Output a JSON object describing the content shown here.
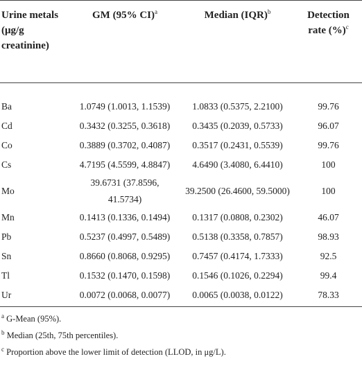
{
  "table": {
    "header": [
      {
        "text": "Urine metals (μg/g creatinine)"
      },
      {
        "text": "GM (95% CI)",
        "note": "a"
      },
      {
        "text": "Median (IQR)",
        "note": "b"
      },
      {
        "text": "Detection rate (%)",
        "note": "c"
      }
    ],
    "rows": [
      [
        "Ba",
        "1.0749 (1.0013, 1.1539)",
        "1.0833 (0.5375, 2.2100)",
        "99.76"
      ],
      [
        "Cd",
        "0.3432 (0.3255, 0.3618)",
        "0.3435 (0.2039, 0.5733)",
        "96.07"
      ],
      [
        "Co",
        "0.3889 (0.3702, 0.4087)",
        "0.3517 (0.2431, 0.5539)",
        "99.76"
      ],
      [
        "Cs",
        "4.7195 (4.5599, 4.8847)",
        "4.6490 (3.4080, 6.4410)",
        "100"
      ],
      [
        "Mo",
        "39.6731 (37.8596, 41.5734)",
        "39.2500 (26.4600, 59.5000)",
        "100"
      ],
      [
        "Mn",
        "0.1413 (0.1336, 0.1494)",
        "0.1317 (0.0808, 0.2302)",
        "46.07"
      ],
      [
        "Pb",
        "0.5237 (0.4997, 0.5489)",
        "0.5138 (0.3358, 0.7857)",
        "98.93"
      ],
      [
        "Sn",
        "0.8660 (0.8068, 0.9295)",
        "0.7457 (0.4174, 1.7333)",
        "92.5"
      ],
      [
        "Tl",
        "0.1532 (0.1470, 0.1598)",
        "0.1546 (0.1026, 0.2294)",
        "99.4"
      ],
      [
        "Ur",
        "0.0072 (0.0068, 0.0077)",
        "0.0065 (0.0038, 0.0122)",
        "78.33"
      ]
    ]
  },
  "footnotes": [
    {
      "mark": "a",
      "text": "G-Mean (95%)."
    },
    {
      "mark": "b",
      "text": "Median (25th, 75th percentiles)."
    },
    {
      "mark": "c",
      "text": "Proportion above the lower limit of detection (LLOD, in μg/L)."
    }
  ]
}
